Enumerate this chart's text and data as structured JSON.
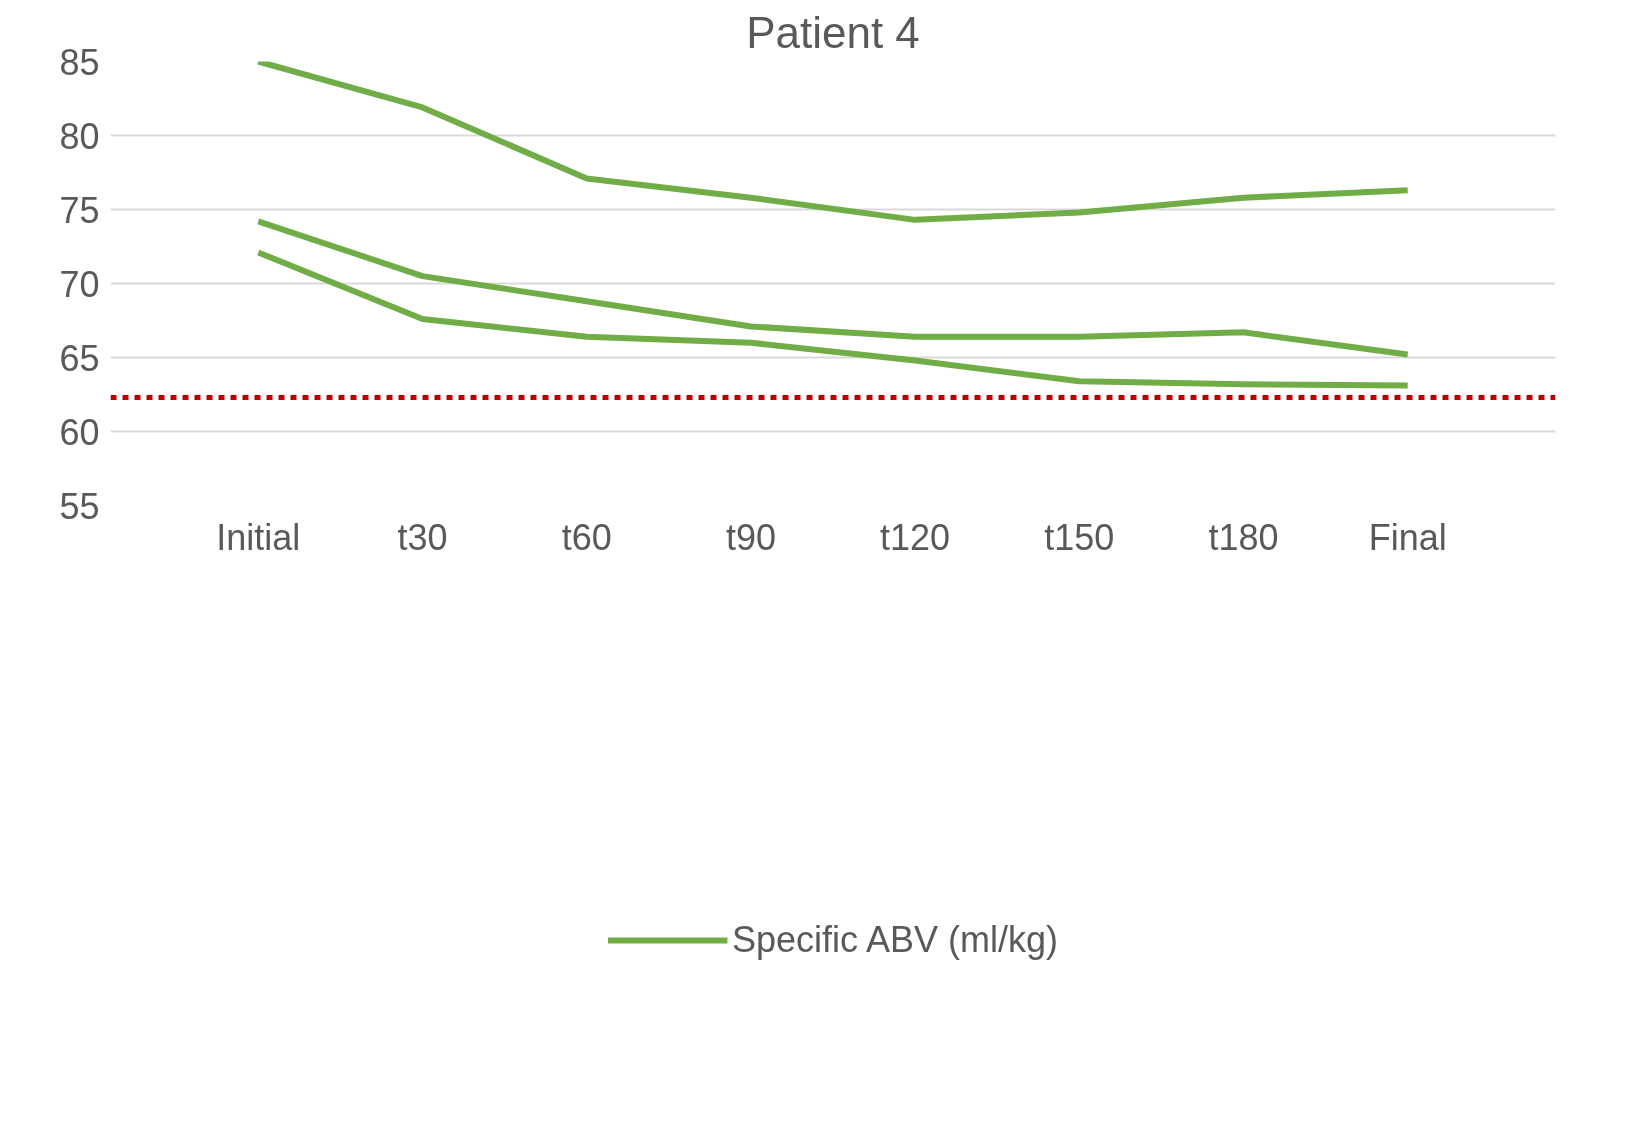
{
  "chart_data": {
    "type": "line",
    "title": "Patient 4",
    "categories": [
      "Initial",
      "t30",
      "t60",
      "t90",
      "t120",
      "t150",
      "t180",
      "Final"
    ],
    "series": [
      {
        "name": "Specific ABV (ml/kg)",
        "color": "#70ad47",
        "values": [
          85,
          81.9,
          77.1,
          75.8,
          74.3,
          74.8,
          75.8,
          76.3
        ]
      },
      {
        "color": "#70ad47",
        "values": [
          74.2,
          70.5,
          68.8,
          67.1,
          66.4,
          66.4,
          66.7,
          65.2
        ]
      },
      {
        "color": "#70ad47",
        "values": [
          72.1,
          67.6,
          66.4,
          66.0,
          64.8,
          63.4,
          63.2,
          63.1
        ]
      }
    ],
    "ref_lines": [
      {
        "axis": "y",
        "value": 62.3,
        "color": "#c00000",
        "line_style": "dashed"
      }
    ],
    "ylim": [
      55,
      85
    ],
    "yticks": [
      55,
      60,
      65,
      70,
      75,
      80,
      85
    ],
    "grid": "y",
    "legend": "bottom",
    "marker": "none",
    "line_style": "solid"
  }
}
